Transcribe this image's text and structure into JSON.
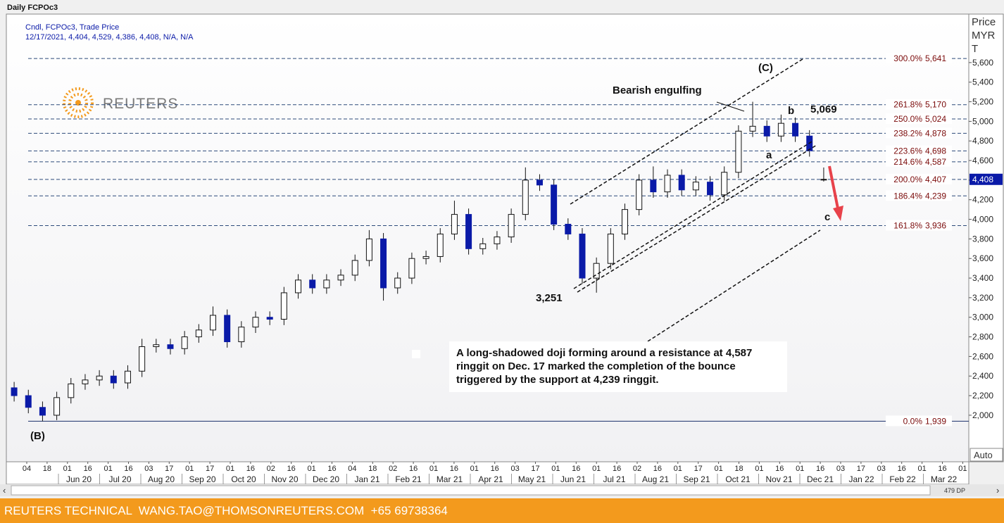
{
  "chart_data": {
    "type": "candlestick",
    "title": "Daily FCPOc3",
    "legend_line1": "Cndl, FCPOc3, Trade Price",
    "legend_line2": "12/17/2021, 4,404, 4,529, 4,386, 4,408, N/A, N/A",
    "y_axis_title": "Price MYR T",
    "scale_mode": "Auto",
    "bar_count": "479 DP",
    "brand": "REUTERS",
    "footer": "REUTERS TECHNICAL  WANG.TAO@THOMSONREUTERS.COM  +65 69738364",
    "last_price": {
      "value": 4408,
      "label": "4,408"
    },
    "up_color": "#ffffff",
    "down_color": "#0a1aa8",
    "categories": [
      null,
      null,
      null,
      null,
      null,
      null,
      null,
      null,
      null,
      null,
      null,
      null,
      null,
      null,
      null,
      null,
      null,
      null,
      null,
      null,
      null,
      null,
      null,
      null,
      null,
      null,
      null,
      null,
      null,
      null,
      null,
      null,
      null,
      null,
      null,
      null,
      null,
      null,
      null,
      null,
      null,
      null,
      null,
      null,
      null,
      null,
      null,
      null,
      null,
      null,
      null,
      null,
      null,
      null,
      null,
      null,
      null,
      null
    ],
    "open": [
      2280,
      2200,
      2080,
      2000,
      2180,
      2320,
      2360,
      2400,
      2330,
      2450,
      2700,
      2720,
      2680,
      2800,
      2870,
      3020,
      2750,
      2900,
      3000,
      2980,
      3250,
      3380,
      3300,
      3380,
      3430,
      3580,
      3800,
      3300,
      3400,
      3600,
      3620,
      3850,
      4050,
      3700,
      3750,
      3820,
      4050,
      4400,
      4350,
      3950,
      3850,
      3400,
      3550,
      3850,
      4100,
      4400,
      4280,
      4450,
      4300,
      4380,
      4250,
      4480,
      4900,
      4950,
      4850,
      4980,
      4850,
      4404
    ],
    "high": [
      2340,
      2260,
      2140,
      2240,
      2380,
      2420,
      2460,
      2460,
      2510,
      2780,
      2780,
      2780,
      2860,
      2930,
      3110,
      3080,
      2960,
      3060,
      3060,
      3310,
      3440,
      3440,
      3440,
      3490,
      3640,
      3890,
      3860,
      3460,
      3660,
      3680,
      3910,
      4190,
      4110,
      3810,
      3880,
      4110,
      4530,
      4460,
      4410,
      4010,
      3910,
      3610,
      3910,
      4160,
      4460,
      4540,
      4510,
      4510,
      4440,
      4440,
      4540,
      4960,
      5200,
      5010,
      5069,
      5040,
      4910,
      4529
    ],
    "low": [
      2140,
      2020,
      1939,
      1950,
      2120,
      2260,
      2300,
      2270,
      2270,
      2390,
      2640,
      2620,
      2620,
      2740,
      2810,
      2690,
      2690,
      2840,
      2920,
      2920,
      3190,
      3240,
      3240,
      3320,
      3370,
      3520,
      3170,
      3240,
      3340,
      3540,
      3560,
      3790,
      3640,
      3640,
      3690,
      3760,
      3990,
      4290,
      3890,
      3790,
      3340,
      3251,
      3490,
      3790,
      4040,
      4220,
      4220,
      4240,
      4240,
      4190,
      4190,
      4420,
      4840,
      4790,
      4790,
      4790,
      4640,
      4386
    ],
    "close": [
      2200,
      2080,
      2000,
      2180,
      2320,
      2360,
      2400,
      2330,
      2450,
      2700,
      2720,
      2680,
      2800,
      2870,
      3020,
      2750,
      2900,
      3000,
      2980,
      3250,
      3380,
      3300,
      3380,
      3430,
      3580,
      3800,
      3300,
      3400,
      3600,
      3620,
      3850,
      4050,
      3700,
      3750,
      3820,
      4050,
      4400,
      4350,
      3950,
      3850,
      3400,
      3550,
      3850,
      4100,
      4400,
      4280,
      4450,
      4300,
      4380,
      4250,
      4480,
      4900,
      4950,
      4850,
      4980,
      4850,
      4700,
      4408
    ],
    "ylim": [
      1525,
      6095
    ],
    "yticks": [
      {
        "value": 2000,
        "label": "2,000"
      },
      {
        "value": 2200,
        "label": "2,200"
      },
      {
        "value": 2400,
        "label": "2,400"
      },
      {
        "value": 2600,
        "label": "2,600"
      },
      {
        "value": 2800,
        "label": "2,800"
      },
      {
        "value": 3000,
        "label": "3,000"
      },
      {
        "value": 3200,
        "label": "3,200"
      },
      {
        "value": 3400,
        "label": "3,400"
      },
      {
        "value": 3600,
        "label": "3,600"
      },
      {
        "value": 3800,
        "label": "3,800"
      },
      {
        "value": 4000,
        "label": "4,000"
      },
      {
        "value": 4200,
        "label": "4,200"
      },
      {
        "value": 4400,
        "label": "4,400"
      },
      {
        "value": 4600,
        "label": "4,600"
      },
      {
        "value": 4800,
        "label": "4,800"
      },
      {
        "value": 5000,
        "label": "5,000"
      },
      {
        "value": 5200,
        "label": "5,200"
      },
      {
        "value": 5400,
        "label": "5,400"
      },
      {
        "value": 5600,
        "label": "5,600"
      }
    ],
    "fib_levels": [
      {
        "ratio": "300.0%",
        "value": 5641,
        "label": "5,641"
      },
      {
        "ratio": "261.8%",
        "value": 5170,
        "label": "5,170"
      },
      {
        "ratio": "250.0%",
        "value": 5024,
        "label": "5,024"
      },
      {
        "ratio": "238.2%",
        "value": 4878,
        "label": "4,878"
      },
      {
        "ratio": "223.6%",
        "value": 4698,
        "label": "4,698"
      },
      {
        "ratio": "214.6%",
        "value": 4587,
        "label": "4,587"
      },
      {
        "ratio": "200.0%",
        "value": 4407,
        "label": "4,407"
      },
      {
        "ratio": "186.4%",
        "value": 4239,
        "label": "4,239"
      },
      {
        "ratio": "161.8%",
        "value": 3936,
        "label": "3,936"
      },
      {
        "ratio": "0.0%",
        "value": 1939,
        "label": "1,939"
      }
    ],
    "x_day_labels": [
      "04",
      "18",
      "01",
      "16",
      "01",
      "16",
      "03",
      "17",
      "01",
      "17",
      "01",
      "16",
      "02",
      "16",
      "01",
      "16",
      "04",
      "18",
      "02",
      "16",
      "01",
      "16",
      "01",
      "16",
      "03",
      "17",
      "01",
      "16",
      "01",
      "16",
      "02",
      "16",
      "01",
      "17",
      "01",
      "18",
      "01",
      "16",
      "01",
      "16",
      "03",
      "17",
      "03",
      "16",
      "01",
      "16",
      "01"
    ],
    "x_month_labels": [
      "Jun 20",
      "Jul 20",
      "Aug 20",
      "Sep 20",
      "Oct 20",
      "Nov 20",
      "Dec 20",
      "Jan 21",
      "Feb 21",
      "Mar 21",
      "Apr 21",
      "May 21",
      "Jun 21",
      "Jul 21",
      "Aug 21",
      "Sep 21",
      "Oct 21",
      "Nov 21",
      "Dec 21",
      "Jan 22",
      "Feb 22",
      "Mar 22"
    ],
    "annotations": {
      "wave_C": "(C)",
      "wave_B": "(B)",
      "engulfing": "Bearish engulfing",
      "wave_a": "a",
      "wave_b": "b",
      "wave_c": "c",
      "peak": "5,069",
      "trough": "3,251",
      "note": [
        "A long-shadowed doji forming around a resistance at 4,587",
        "ringgit on Dec. 17 marked the completion of the bounce",
        "triggered by the support at 4,239 ringgit."
      ]
    }
  }
}
